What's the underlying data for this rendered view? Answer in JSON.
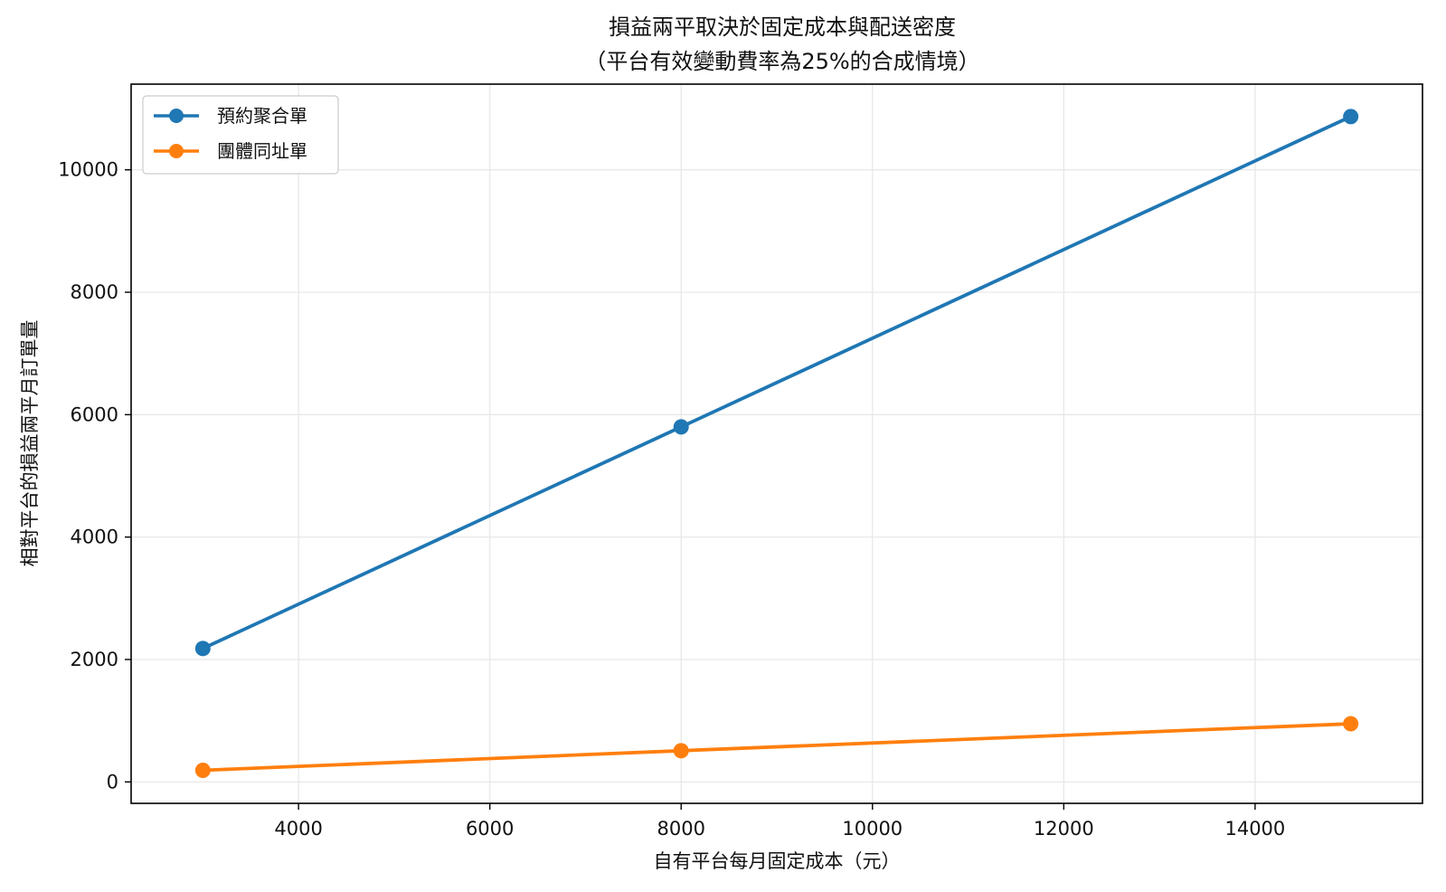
{
  "chart_data": {
    "type": "line",
    "title_lines": [
      "損益兩平取決於固定成本與配送密度",
      "（平台有效變動費率為25%的合成情境）"
    ],
    "xlabel": "自有平台每月固定成本（元）",
    "ylabel": "相對平台的損益兩平月訂單量",
    "x": [
      3000,
      8000,
      15000
    ],
    "xlim": [
      2250,
      15750
    ],
    "ylim": [
      -350,
      11400
    ],
    "xticks": [
      4000,
      6000,
      8000,
      10000,
      12000,
      14000
    ],
    "yticks": [
      0,
      2000,
      4000,
      6000,
      8000,
      10000
    ],
    "grid": true,
    "legend_position": "top-left",
    "series": [
      {
        "name": "預約聚合單",
        "color": "#1f77b4",
        "values": [
          2180,
          5800,
          10870
        ]
      },
      {
        "name": "團體同址單",
        "color": "#ff7f0e",
        "values": [
          190,
          510,
          950
        ]
      }
    ]
  }
}
